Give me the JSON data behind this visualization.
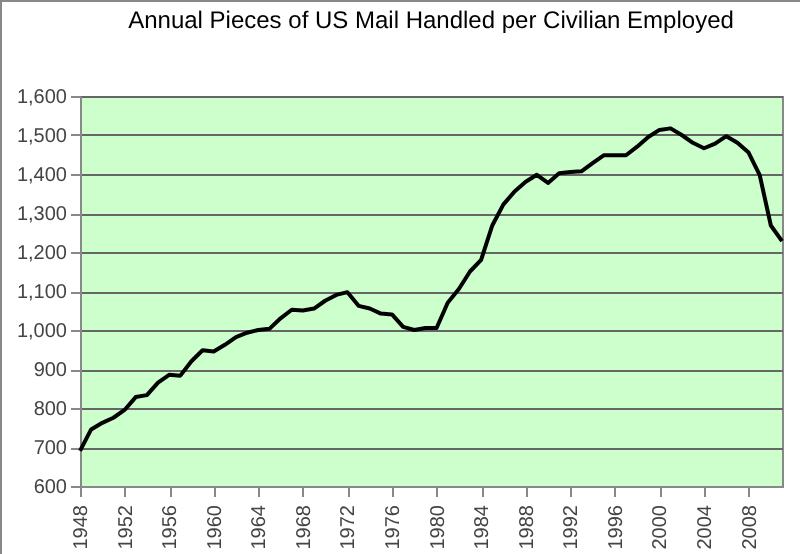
{
  "chart_data": {
    "type": "line",
    "title": "Annual Pieces of US Mail Handled per Civilian Employed",
    "x": [
      1948,
      1949,
      1950,
      1951,
      1952,
      1953,
      1954,
      1955,
      1956,
      1957,
      1958,
      1959,
      1960,
      1961,
      1962,
      1963,
      1964,
      1965,
      1966,
      1967,
      1968,
      1969,
      1970,
      1971,
      1972,
      1973,
      1974,
      1975,
      1976,
      1977,
      1978,
      1979,
      1980,
      1981,
      1982,
      1983,
      1984,
      1985,
      1986,
      1987,
      1988,
      1989,
      1990,
      1991,
      1992,
      1993,
      1994,
      1995,
      1996,
      1997,
      1998,
      1999,
      2000,
      2001,
      2002,
      2003,
      2004,
      2005,
      2006,
      2007,
      2008,
      2009,
      2010,
      2011
    ],
    "series": [
      {
        "color": "#000000",
        "values": [
          690,
          745,
          762,
          775,
          795,
          828,
          833,
          865,
          885,
          883,
          920,
          948,
          945,
          962,
          982,
          993,
          1000,
          1003,
          1030,
          1052,
          1050,
          1055,
          1075,
          1090,
          1097,
          1062,
          1055,
          1042,
          1040,
          1008,
          1000,
          1005,
          1005,
          1070,
          1105,
          1150,
          1180,
          1268,
          1322,
          1355,
          1380,
          1398,
          1377,
          1402,
          1405,
          1407,
          1428,
          1448,
          1448,
          1448,
          1470,
          1495,
          1513,
          1517,
          1500,
          1480,
          1466,
          1478,
          1497,
          1480,
          1455,
          1397,
          1268,
          1228
        ]
      }
    ],
    "xlim": [
      1948,
      2011
    ],
    "xticks": [
      1948,
      1952,
      1956,
      1960,
      1964,
      1968,
      1972,
      1976,
      1980,
      1984,
      1988,
      1992,
      1996,
      2000,
      2004,
      2008
    ],
    "ylim": [
      600,
      1600
    ],
    "yticks": [
      {
        "value": 600,
        "label": "600"
      },
      {
        "value": 700,
        "label": "700"
      },
      {
        "value": 800,
        "label": "800"
      },
      {
        "value": 900,
        "label": "900"
      },
      {
        "value": 1000,
        "label": "1,000"
      },
      {
        "value": 1100,
        "label": "1,100"
      },
      {
        "value": 1200,
        "label": "1,200"
      },
      {
        "value": 1300,
        "label": "1,300"
      },
      {
        "value": 1400,
        "label": "1,400"
      },
      {
        "value": 1500,
        "label": "1,500"
      },
      {
        "value": 1600,
        "label": "1,600"
      }
    ],
    "grid": "y",
    "legend": false,
    "marker": "none",
    "line_style": "solid"
  }
}
